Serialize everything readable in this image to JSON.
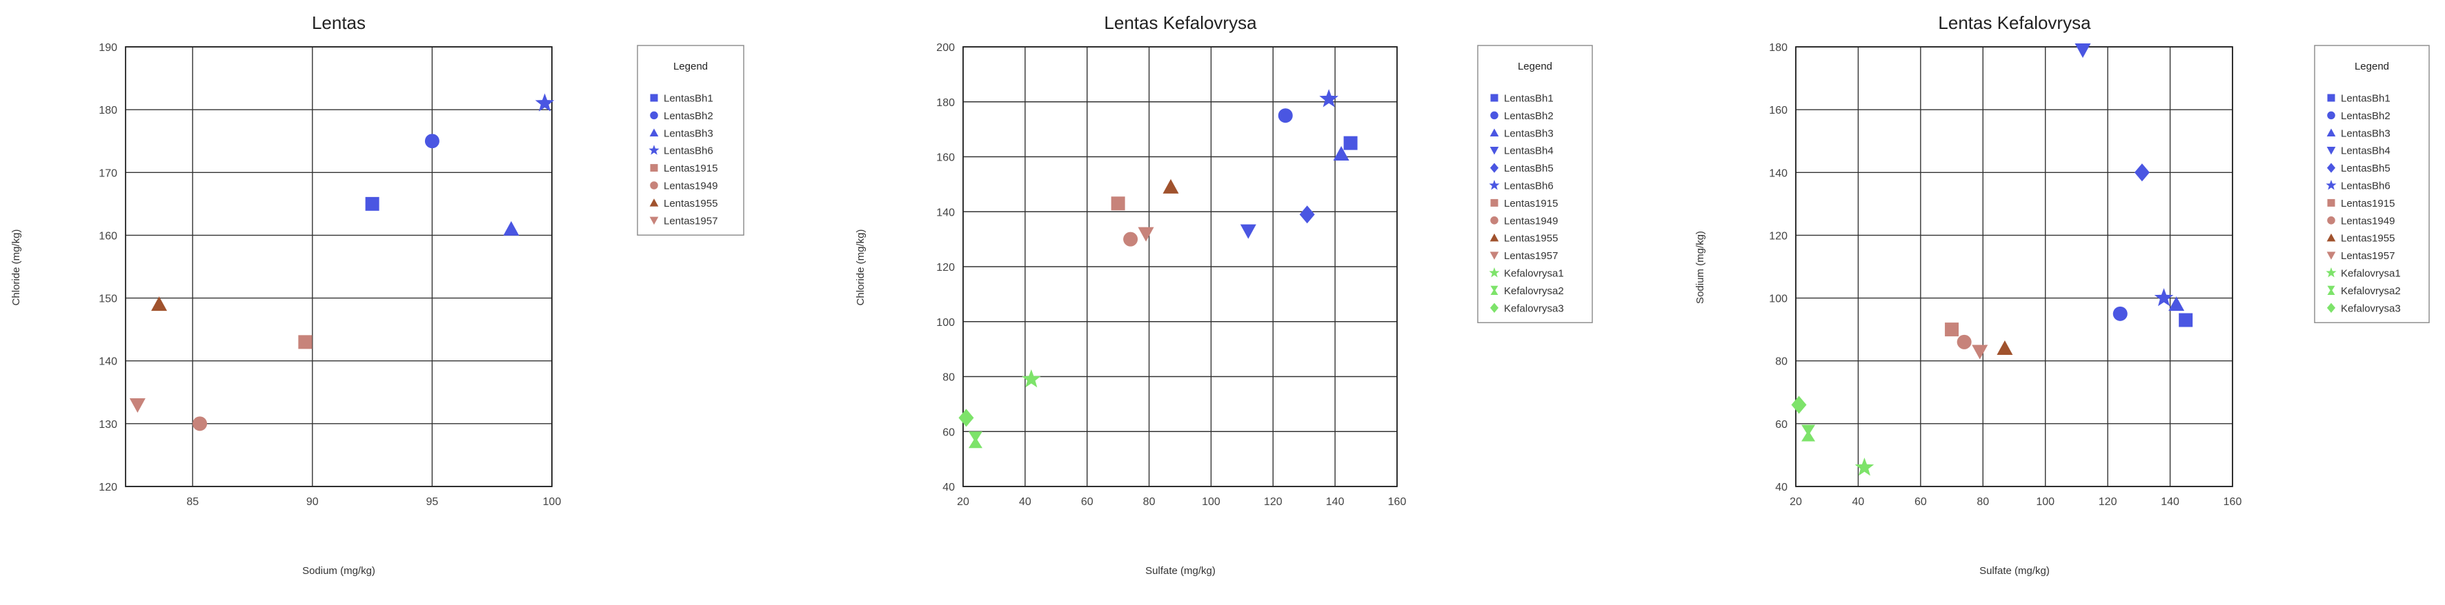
{
  "chart_data": [
    {
      "type": "scatter",
      "title": "Lentas",
      "xlabel": "Sodium (mg/kg)",
      "ylabel": "Chloride (mg/kg)",
      "xlim": [
        82.2,
        100
      ],
      "ylim": [
        120,
        190
      ],
      "xticks": [
        85,
        90,
        95,
        100
      ],
      "yticks": [
        120,
        130,
        140,
        150,
        160,
        170,
        180,
        190
      ],
      "grid": true,
      "legend_title": "Legend",
      "legend_position": "right",
      "series": [
        {
          "name": "LentasBh1",
          "marker": "square",
          "color": "#4a56e2",
          "points": [
            [
              92.5,
              165
            ]
          ]
        },
        {
          "name": "LentasBh2",
          "marker": "circle",
          "color": "#4a56e2",
          "points": [
            [
              95,
              175
            ]
          ]
        },
        {
          "name": "LentasBh3",
          "marker": "triangle-up",
          "color": "#4a56e2",
          "points": [
            [
              98.3,
              161
            ]
          ]
        },
        {
          "name": "LentasBh6",
          "marker": "star",
          "color": "#4a56e2",
          "points": [
            [
              99.7,
              181
            ]
          ]
        },
        {
          "name": "Lentas1915",
          "marker": "square",
          "color": "#c7837a",
          "points": [
            [
              89.7,
              143
            ]
          ]
        },
        {
          "name": "Lentas1949",
          "marker": "circle",
          "color": "#c7837a",
          "points": [
            [
              85.3,
              130
            ]
          ]
        },
        {
          "name": "Lentas1955",
          "marker": "triangle-up",
          "color": "#a0522d",
          "points": [
            [
              83.6,
              149
            ]
          ]
        },
        {
          "name": "Lentas1957",
          "marker": "triangle-down",
          "color": "#c7837a",
          "points": [
            [
              82.7,
              133
            ]
          ]
        }
      ]
    },
    {
      "type": "scatter",
      "title": "Lentas Kefalovrysa",
      "xlabel": "Sulfate (mg/kg)",
      "ylabel": "Chloride (mg/kg)",
      "xlim": [
        20,
        160
      ],
      "ylim": [
        40,
        200
      ],
      "xticks": [
        20,
        40,
        60,
        80,
        100,
        120,
        140,
        160
      ],
      "yticks": [
        40,
        60,
        80,
        100,
        120,
        140,
        160,
        180,
        200
      ],
      "grid": true,
      "legend_title": "Legend",
      "legend_position": "right",
      "series": [
        {
          "name": "LentasBh1",
          "marker": "square",
          "color": "#4a56e2",
          "points": [
            [
              145,
              165
            ]
          ]
        },
        {
          "name": "LentasBh2",
          "marker": "circle",
          "color": "#4a56e2",
          "points": [
            [
              124,
              175
            ]
          ]
        },
        {
          "name": "LentasBh3",
          "marker": "triangle-up",
          "color": "#4a56e2",
          "points": [
            [
              142,
              161
            ]
          ]
        },
        {
          "name": "LentasBh4",
          "marker": "triangle-down",
          "color": "#4a56e2",
          "points": [
            [
              112,
              133
            ]
          ]
        },
        {
          "name": "LentasBh5",
          "marker": "diamond",
          "color": "#4a56e2",
          "points": [
            [
              131,
              139
            ]
          ]
        },
        {
          "name": "LentasBh6",
          "marker": "star",
          "color": "#4a56e2",
          "points": [
            [
              138,
              181
            ]
          ]
        },
        {
          "name": "Lentas1915",
          "marker": "square",
          "color": "#c7837a",
          "points": [
            [
              70,
              143
            ]
          ]
        },
        {
          "name": "Lentas1949",
          "marker": "circle",
          "color": "#c7837a",
          "points": [
            [
              74,
              130
            ]
          ]
        },
        {
          "name": "Lentas1955",
          "marker": "triangle-up",
          "color": "#a0522d",
          "points": [
            [
              87,
              149
            ]
          ]
        },
        {
          "name": "Lentas1957",
          "marker": "triangle-down",
          "color": "#c7837a",
          "points": [
            [
              79,
              132
            ]
          ]
        },
        {
          "name": "Kefalovrysa1",
          "marker": "star",
          "color": "#7de36a",
          "points": [
            [
              42,
              79
            ]
          ]
        },
        {
          "name": "Kefalovrysa2",
          "marker": "hourglass",
          "color": "#7de36a",
          "points": [
            [
              24,
              57
            ]
          ]
        },
        {
          "name": "Kefalovrysa3",
          "marker": "diamond",
          "color": "#7de36a",
          "points": [
            [
              21,
              65
            ]
          ]
        }
      ]
    },
    {
      "type": "scatter",
      "title": "Lentas Kefalovrysa",
      "xlabel": "Sulfate (mg/kg)",
      "ylabel": "Sodium (mg/kg)",
      "xlim": [
        20,
        160
      ],
      "ylim": [
        40,
        180
      ],
      "xticks": [
        20,
        40,
        60,
        80,
        100,
        120,
        140,
        160
      ],
      "yticks": [
        40,
        60,
        80,
        100,
        120,
        140,
        160,
        180
      ],
      "grid": true,
      "legend_title": "Legend",
      "legend_position": "right",
      "series": [
        {
          "name": "LentasBh1",
          "marker": "square",
          "color": "#4a56e2",
          "points": [
            [
              145,
              93
            ]
          ]
        },
        {
          "name": "LentasBh2",
          "marker": "circle",
          "color": "#4a56e2",
          "points": [
            [
              124,
              95
            ]
          ]
        },
        {
          "name": "LentasBh3",
          "marker": "triangle-up",
          "color": "#4a56e2",
          "points": [
            [
              142,
              98
            ]
          ]
        },
        {
          "name": "LentasBh4",
          "marker": "triangle-down",
          "color": "#4a56e2",
          "points": [
            [
              112,
              179
            ]
          ]
        },
        {
          "name": "LentasBh5",
          "marker": "diamond",
          "color": "#4a56e2",
          "points": [
            [
              131,
              140
            ]
          ]
        },
        {
          "name": "LentasBh6",
          "marker": "star",
          "color": "#4a56e2",
          "points": [
            [
              138,
              100
            ]
          ]
        },
        {
          "name": "Lentas1915",
          "marker": "square",
          "color": "#c7837a",
          "points": [
            [
              70,
              90
            ]
          ]
        },
        {
          "name": "Lentas1949",
          "marker": "circle",
          "color": "#c7837a",
          "points": [
            [
              74,
              86
            ]
          ]
        },
        {
          "name": "Lentas1955",
          "marker": "triangle-up",
          "color": "#a0522d",
          "points": [
            [
              87,
              84
            ]
          ]
        },
        {
          "name": "Lentas1957",
          "marker": "triangle-down",
          "color": "#c7837a",
          "points": [
            [
              79,
              83
            ]
          ]
        },
        {
          "name": "Kefalovrysa1",
          "marker": "star",
          "color": "#7de36a",
          "points": [
            [
              42,
              46
            ]
          ]
        },
        {
          "name": "Kefalovrysa2",
          "marker": "hourglass",
          "color": "#7de36a",
          "points": [
            [
              24,
              57
            ]
          ]
        },
        {
          "name": "Kefalovrysa3",
          "marker": "diamond",
          "color": "#7de36a",
          "points": [
            [
              21,
              66
            ]
          ]
        }
      ]
    }
  ]
}
